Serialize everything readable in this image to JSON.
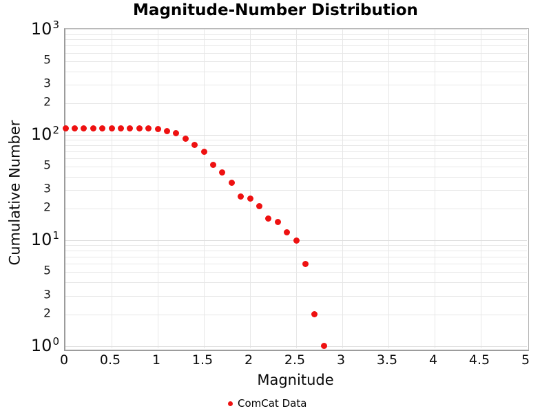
{
  "chart_data": {
    "type": "scatter",
    "title": "Magnitude-Number Distribution",
    "xlabel": "Magnitude",
    "ylabel": "Cumulative Number",
    "yscale": "log",
    "xlim": [
      0,
      5
    ],
    "ylim": [
      1,
      1000
    ],
    "grid": true,
    "legend_position": "bottom-center",
    "series": [
      {
        "name": "ComCat Data",
        "marker": "circle",
        "color": "#ee1111",
        "x": [
          0.0,
          0.1,
          0.2,
          0.3,
          0.4,
          0.5,
          0.6,
          0.7,
          0.8,
          0.9,
          1.0,
          1.1,
          1.2,
          1.3,
          1.4,
          1.5,
          1.6,
          1.7,
          1.8,
          1.9,
          2.0,
          2.1,
          2.2,
          2.3,
          2.4,
          2.5,
          2.6,
          2.7,
          2.8
        ],
        "y": [
          115,
          115,
          115,
          115,
          115,
          115,
          115,
          115,
          115,
          115,
          114,
          109,
          103,
          92,
          80,
          69,
          52,
          44,
          35,
          26,
          25,
          21,
          16,
          15,
          12,
          10,
          6,
          2,
          1
        ]
      }
    ],
    "x_ticks": [
      {
        "value": 0,
        "label": "0"
      },
      {
        "value": 0.5,
        "label": "0.5"
      },
      {
        "value": 1,
        "label": "1"
      },
      {
        "value": 1.5,
        "label": "1.5"
      },
      {
        "value": 2,
        "label": "2"
      },
      {
        "value": 2.5,
        "label": "2.5"
      },
      {
        "value": 3,
        "label": "3"
      },
      {
        "value": 3.5,
        "label": "3.5"
      },
      {
        "value": 4,
        "label": "4"
      },
      {
        "value": 4.5,
        "label": "4.5"
      },
      {
        "value": 5,
        "label": "5"
      }
    ],
    "y_ticks": [
      {
        "value": 1000,
        "type": "major",
        "base": "10",
        "exp": "3"
      },
      {
        "value": 500,
        "type": "minor",
        "label": "5"
      },
      {
        "value": 300,
        "type": "minor",
        "label": "3"
      },
      {
        "value": 200,
        "type": "minor",
        "label": "2"
      },
      {
        "value": 100,
        "type": "major",
        "base": "10",
        "exp": "2"
      },
      {
        "value": 50,
        "type": "minor",
        "label": "5"
      },
      {
        "value": 30,
        "type": "minor",
        "label": "3"
      },
      {
        "value": 20,
        "type": "minor",
        "label": "2"
      },
      {
        "value": 10,
        "type": "major",
        "base": "10",
        "exp": "1"
      },
      {
        "value": 5,
        "type": "minor",
        "label": "5"
      },
      {
        "value": 3,
        "type": "minor",
        "label": "3"
      },
      {
        "value": 2,
        "type": "minor",
        "label": "2"
      },
      {
        "value": 1,
        "type": "major",
        "base": "10",
        "exp": "0"
      }
    ]
  },
  "colors": {
    "marker": "#ee1111",
    "grid": "#e7e7e7",
    "grid_major": "#dedede",
    "border": "#9c9c9c",
    "text": "#0a0a0a",
    "background": "#ffffff"
  }
}
